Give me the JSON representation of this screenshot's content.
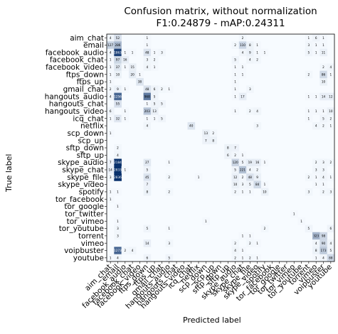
{
  "chart_data": {
    "type": "heatmap",
    "title_lines": [
      "Confusion matrix, without normalization",
      "F1:0.24879 - mAP:0.24311"
    ],
    "xlabel": "Predicted label",
    "ylabel": "True label",
    "colormap": "Blues",
    "color_range": [
      0,
      2200
    ],
    "colors": {
      "low": "#f7fbff",
      "high": "#08306b",
      "text_dark": "#000000",
      "text_light": "#ffffff"
    },
    "labels": [
      "aim_chat",
      "email",
      "facebook_audio",
      "facebook_chat",
      "facebook_video",
      "ftps_down",
      "ftps_up",
      "gmail_chat",
      "hangouts_audio",
      "hangouts_chat",
      "hangouts_video",
      "icq_chat",
      "netflix",
      "scp_down",
      "scp_up",
      "sftp_down",
      "sftp_up",
      "skype_audio",
      "skype_chat",
      "skype_file",
      "skype_video",
      "spotify",
      "tor_facebook",
      "tor_google",
      "tor_twitter",
      "tor_vimeo",
      "tor_youtube",
      "torrent",
      "vimeo",
      "voipbuster",
      "youtube"
    ],
    "cells": [
      [
        0,
        0,
        4
      ],
      [
        0,
        1,
        52
      ],
      [
        0,
        5,
        1
      ],
      [
        0,
        18,
        2
      ],
      [
        0,
        27,
        1
      ],
      [
        0,
        28,
        6
      ],
      [
        0,
        29,
        1
      ],
      [
        1,
        0,
        127
      ],
      [
        1,
        1,
        286
      ],
      [
        1,
        5,
        1
      ],
      [
        1,
        17,
        2
      ],
      [
        1,
        18,
        110
      ],
      [
        1,
        19,
        8
      ],
      [
        1,
        20,
        1
      ],
      [
        1,
        27,
        3
      ],
      [
        1,
        28,
        1
      ],
      [
        1,
        29,
        1
      ],
      [
        2,
        0,
        4
      ],
      [
        2,
        1,
        1863
      ],
      [
        2,
        2,
        1
      ],
      [
        2,
        3,
        1
      ],
      [
        2,
        5,
        48
      ],
      [
        2,
        6,
        1
      ],
      [
        2,
        7,
        3
      ],
      [
        2,
        18,
        4
      ],
      [
        2,
        19,
        9
      ],
      [
        2,
        20,
        1
      ],
      [
        2,
        21,
        1
      ],
      [
        2,
        27,
        5
      ],
      [
        2,
        28,
        1
      ],
      [
        2,
        29,
        11
      ],
      [
        3,
        0,
        1
      ],
      [
        3,
        1,
        97
      ],
      [
        3,
        2,
        16
      ],
      [
        3,
        5,
        3
      ],
      [
        3,
        6,
        2
      ],
      [
        3,
        17,
        5
      ],
      [
        3,
        19,
        4
      ],
      [
        3,
        20,
        2
      ],
      [
        4,
        0,
        1
      ],
      [
        4,
        1,
        37
      ],
      [
        4,
        2,
        1
      ],
      [
        4,
        3,
        15
      ],
      [
        4,
        5,
        4
      ],
      [
        4,
        6,
        1
      ],
      [
        4,
        17,
        1
      ],
      [
        4,
        18,
        1
      ],
      [
        4,
        29,
        2
      ],
      [
        4,
        30,
        4
      ],
      [
        5,
        0,
        1
      ],
      [
        5,
        1,
        10
      ],
      [
        5,
        3,
        20
      ],
      [
        5,
        4,
        1
      ],
      [
        5,
        17,
        1
      ],
      [
        5,
        18,
        1
      ],
      [
        5,
        27,
        2
      ],
      [
        5,
        29,
        86
      ],
      [
        5,
        30,
        1
      ],
      [
        6,
        0,
        1
      ],
      [
        6,
        4,
        38
      ],
      [
        6,
        17,
        1
      ],
      [
        6,
        29,
        10
      ],
      [
        7,
        0,
        2
      ],
      [
        7,
        1,
        9
      ],
      [
        7,
        2,
        1
      ],
      [
        7,
        5,
        48
      ],
      [
        7,
        6,
        6
      ],
      [
        7,
        7,
        2
      ],
      [
        7,
        8,
        1
      ],
      [
        7,
        17,
        1
      ],
      [
        7,
        19,
        3
      ],
      [
        8,
        0,
        4
      ],
      [
        8,
        1,
        1256
      ],
      [
        8,
        5,
        968
      ],
      [
        8,
        6,
        5
      ],
      [
        8,
        17,
        1
      ],
      [
        8,
        18,
        17
      ],
      [
        8,
        27,
        1
      ],
      [
        8,
        28,
        1
      ],
      [
        8,
        29,
        14
      ],
      [
        8,
        30,
        12
      ],
      [
        9,
        1,
        55
      ],
      [
        9,
        5,
        1
      ],
      [
        9,
        6,
        5
      ],
      [
        9,
        7,
        5
      ],
      [
        10,
        0,
        6
      ],
      [
        10,
        2,
        1
      ],
      [
        10,
        5,
        203
      ],
      [
        10,
        6,
        13
      ],
      [
        10,
        17,
        1
      ],
      [
        10,
        19,
        2
      ],
      [
        10,
        20,
        4
      ],
      [
        10,
        27,
        1
      ],
      [
        10,
        28,
        1
      ],
      [
        10,
        29,
        1
      ],
      [
        10,
        30,
        10
      ],
      [
        11,
        0,
        1
      ],
      [
        11,
        1,
        32
      ],
      [
        11,
        2,
        1
      ],
      [
        11,
        5,
        1
      ],
      [
        11,
        6,
        1
      ],
      [
        11,
        7,
        5
      ],
      [
        11,
        27,
        1
      ],
      [
        11,
        29,
        5
      ],
      [
        11,
        30,
        2
      ],
      [
        12,
        5,
        4
      ],
      [
        12,
        11,
        40
      ],
      [
        12,
        20,
        3
      ],
      [
        12,
        28,
        4
      ],
      [
        12,
        29,
        2
      ],
      [
        12,
        30,
        1
      ],
      [
        13,
        0,
        1
      ],
      [
        13,
        13,
        13
      ],
      [
        13,
        14,
        2
      ],
      [
        14,
        13,
        7
      ],
      [
        14,
        14,
        8
      ],
      [
        15,
        1,
        2
      ],
      [
        15,
        16,
        8
      ],
      [
        15,
        17,
        7
      ],
      [
        16,
        1,
        4
      ],
      [
        16,
        16,
        6
      ],
      [
        16,
        17,
        2
      ],
      [
        16,
        18,
        1
      ],
      [
        17,
        0,
        7
      ],
      [
        17,
        1,
        2184
      ],
      [
        17,
        5,
        27
      ],
      [
        17,
        8,
        1
      ],
      [
        17,
        17,
        120
      ],
      [
        17,
        18,
        5
      ],
      [
        17,
        19,
        19
      ],
      [
        17,
        20,
        16
      ],
      [
        17,
        21,
        1
      ],
      [
        17,
        28,
        2
      ],
      [
        17,
        29,
        3
      ],
      [
        17,
        30,
        2
      ],
      [
        18,
        0,
        14
      ],
      [
        18,
        1,
        2833
      ],
      [
        18,
        2,
        1
      ],
      [
        18,
        5,
        5
      ],
      [
        18,
        17,
        5
      ],
      [
        18,
        18,
        221
      ],
      [
        18,
        19,
        4
      ],
      [
        18,
        20,
        2
      ],
      [
        18,
        28,
        3
      ],
      [
        18,
        29,
        3
      ],
      [
        19,
        0,
        3
      ],
      [
        19,
        1,
        2836
      ],
      [
        19,
        5,
        45
      ],
      [
        19,
        8,
        2
      ],
      [
        19,
        12,
        1
      ],
      [
        19,
        17,
        12
      ],
      [
        19,
        18,
        2
      ],
      [
        19,
        19,
        48
      ],
      [
        19,
        20,
        9
      ],
      [
        19,
        27,
        2
      ],
      [
        19,
        28,
        1
      ],
      [
        19,
        29,
        4
      ],
      [
        19,
        30,
        1
      ],
      [
        20,
        5,
        7
      ],
      [
        20,
        17,
        10
      ],
      [
        20,
        18,
        3
      ],
      [
        20,
        19,
        5
      ],
      [
        20,
        20,
        84
      ],
      [
        20,
        21,
        1
      ],
      [
        20,
        28,
        1
      ],
      [
        20,
        29,
        1
      ],
      [
        21,
        0,
        1
      ],
      [
        21,
        1,
        1
      ],
      [
        21,
        5,
        8
      ],
      [
        21,
        8,
        2
      ],
      [
        21,
        17,
        2
      ],
      [
        21,
        18,
        1
      ],
      [
        21,
        19,
        1
      ],
      [
        21,
        21,
        10
      ],
      [
        21,
        27,
        3
      ],
      [
        21,
        29,
        2
      ],
      [
        21,
        30,
        3
      ],
      [
        22,
        0,
        1
      ],
      [
        23,
        1,
        1
      ],
      [
        24,
        25,
        1
      ],
      [
        25,
        1,
        1
      ],
      [
        25,
        13,
        1
      ],
      [
        25,
        26,
        1
      ],
      [
        26,
        1,
        3
      ],
      [
        26,
        5,
        5
      ],
      [
        26,
        8,
        1
      ],
      [
        26,
        21,
        2
      ],
      [
        26,
        27,
        5
      ],
      [
        26,
        30,
        6
      ],
      [
        27,
        1,
        3
      ],
      [
        27,
        18,
        1
      ],
      [
        27,
        19,
        1
      ],
      [
        27,
        28,
        323
      ],
      [
        27,
        29,
        98
      ],
      [
        28,
        5,
        14
      ],
      [
        28,
        8,
        3
      ],
      [
        28,
        17,
        2
      ],
      [
        28,
        19,
        2
      ],
      [
        28,
        20,
        1
      ],
      [
        28,
        28,
        4
      ],
      [
        28,
        29,
        90
      ],
      [
        28,
        30,
        4
      ],
      [
        29,
        1,
        1273
      ],
      [
        29,
        2,
        2
      ],
      [
        29,
        3,
        4
      ],
      [
        29,
        17,
        4
      ],
      [
        29,
        18,
        1
      ],
      [
        29,
        28,
        8
      ],
      [
        29,
        29,
        173
      ],
      [
        29,
        30,
        5
      ],
      [
        30,
        0,
        1
      ],
      [
        30,
        1,
        4
      ],
      [
        30,
        5,
        6
      ],
      [
        30,
        8,
        5
      ],
      [
        30,
        17,
        2
      ],
      [
        30,
        18,
        1
      ],
      [
        30,
        19,
        2
      ],
      [
        30,
        20,
        1
      ],
      [
        30,
        28,
        1
      ],
      [
        30,
        29,
        4
      ],
      [
        30,
        30,
        88
      ]
    ]
  }
}
